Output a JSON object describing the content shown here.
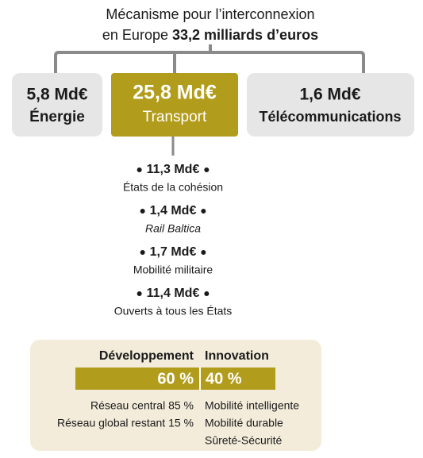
{
  "header": {
    "line1": "Mécanisme pour l’interconnexion",
    "line2": "en Europe",
    "line2_bold": "33,2 milliards d’euros"
  },
  "boxes": [
    {
      "amount": "5,8 Md€",
      "label": "Énergie"
    },
    {
      "amount": "25,8 Md€",
      "label": "Transport"
    },
    {
      "amount": "1,6 Md€",
      "label": "Télécommunications"
    }
  ],
  "items": [
    {
      "amount": "11,3 Md€",
      "label": "États de la cohésion"
    },
    {
      "amount": "1,4 Md€",
      "label": "Rail Baltica"
    },
    {
      "amount": "1,7 Md€",
      "label": "Mobilité militaire"
    },
    {
      "amount": "11,4 Md€",
      "label": "Ouverts à tous les États"
    }
  ],
  "panel": {
    "development": {
      "heading": "Développement",
      "share": "60 %",
      "lines": [
        "Réseau central 85 %",
        "Réseau global restant 15 %"
      ]
    },
    "innovation": {
      "heading": "Innovation",
      "share": "40 %",
      "lines": [
        "Mobilité intelligente",
        "Mobilité durable",
        "Sûreté-Sécurité"
      ]
    }
  }
}
